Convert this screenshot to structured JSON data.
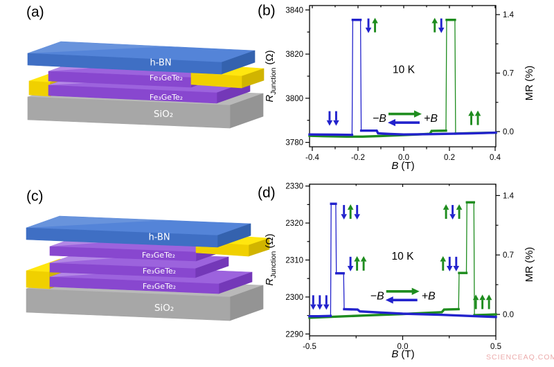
{
  "panels": {
    "a": {
      "label": "(a)",
      "layers": [
        "h-BN",
        "Fe₃GeTe₂",
        "Fe₃GeTe₂",
        "SiO₂"
      ]
    },
    "b": {
      "label": "(b)"
    },
    "c": {
      "label": "(c)",
      "layers": [
        "h-BN",
        "Fe₃GeTe₂",
        "Fe₃GeTe₂",
        "Fe₃GeTe₂",
        "SiO₂"
      ]
    },
    "d": {
      "label": "(d)"
    }
  },
  "watermark": "SCIENCEAQ.COM",
  "colors": {
    "curve_blue": "#2222cc",
    "curve_green": "#1e8c1e",
    "axis": "#000000",
    "hbn_top": "#5484d8",
    "hbn_front": "#3f6fc4",
    "hbn_side": "#3462ae",
    "fgt_top": "#9c63dd",
    "fgt_front": "#8847cf",
    "fgt_side": "#7438b8",
    "au_top": "#ffe60f",
    "au_front": "#f0d000",
    "au_side": "#d1b400",
    "sio2_top": "#b9b9b9",
    "sio2_front": "#a7a7a7",
    "sio2_side": "#949494",
    "layer_label_text": "#ffffff",
    "watermark": "#ecabab"
  },
  "chart_data": [
    {
      "id": "b",
      "type": "line",
      "panel": "(b)",
      "xlabel": {
        "main": "B",
        "unit": "(T)"
      },
      "ylabel_left": {
        "main": "R",
        "sub": "Junction",
        "unit": "(Ω)"
      },
      "ylabel_right": "MR (%)",
      "annotation_temperature": "10 K",
      "temperature_pos": {
        "x": 0,
        "y": 3813
      },
      "xlim": [
        -0.412,
        0.403
      ],
      "ylim": [
        3778,
        3842
      ],
      "x_major": [
        -0.4,
        -0.2,
        0,
        0.2,
        0.4
      ],
      "x_major_labels": [
        "-0.4",
        "-0.2",
        "0.0",
        "0.2",
        "0.4"
      ],
      "x_minor": [
        -0.3,
        -0.1,
        0.1,
        0.3
      ],
      "y_major": [
        3780,
        3800,
        3820,
        3840
      ],
      "y_major_labels": [
        "3780",
        "3800",
        "3820",
        "3840"
      ],
      "y_minor": [
        3790,
        3810,
        3830
      ],
      "mr_base": 3784.9,
      "mr_major": [
        0,
        0.7,
        1.4
      ],
      "mr_major_labels": [
        "0.0",
        "0.7",
        "1.4"
      ],
      "mr_minor": [
        0.35,
        1.05
      ],
      "sweep_legend": {
        "x": 0.003,
        "y": 3791,
        "neg": "−B",
        "pos": "+B"
      },
      "series": [
        {
          "name": "sweep-neg-to-pos",
          "color": "green",
          "points": [
            [
              -0.412,
              3783.0
            ],
            [
              -0.35,
              3782.8
            ],
            [
              -0.25,
              3782.6
            ],
            [
              -0.18,
              3782.6
            ],
            [
              -0.1,
              3782.9
            ],
            [
              0,
              3783.3
            ],
            [
              0.06,
              3783.6
            ],
            [
              0.115,
              3783.9
            ],
            [
              0.122,
              3785.2
            ],
            [
              0.185,
              3785.3
            ],
            [
              0.188,
              3835.5
            ],
            [
              0.224,
              3835.5
            ],
            [
              0.227,
              3784.0
            ],
            [
              0.3,
              3784.2
            ],
            [
              0.403,
              3784.4
            ]
          ]
        },
        {
          "name": "sweep-pos-to-neg",
          "color": "blue",
          "points": [
            [
              0.403,
              3784.4
            ],
            [
              0.3,
              3784.1
            ],
            [
              0.2,
              3783.9
            ],
            [
              0.1,
              3783.7
            ],
            [
              0,
              3783.6
            ],
            [
              -0.06,
              3783.8
            ],
            [
              -0.112,
              3784.1
            ],
            [
              -0.118,
              3785.3
            ],
            [
              -0.186,
              3785.3
            ],
            [
              -0.189,
              3835.5
            ],
            [
              -0.223,
              3835.5
            ],
            [
              -0.226,
              3783.4
            ],
            [
              -0.3,
              3783.5
            ],
            [
              -0.412,
              3783.6
            ]
          ]
        }
      ],
      "spin_annotations": [
        {
          "x": -0.14,
          "y": 3833,
          "arrows": [
            [
              "down",
              "blue"
            ],
            [
              "up",
              "green"
            ]
          ]
        },
        {
          "x": 0.15,
          "y": 3833,
          "arrows": [
            [
              "up",
              "green"
            ],
            [
              "down",
              "blue"
            ]
          ]
        },
        {
          "x": -0.31,
          "y": 3791,
          "arrows": [
            [
              "down",
              "blue"
            ],
            [
              "down",
              "blue"
            ]
          ]
        },
        {
          "x": 0.31,
          "y": 3791,
          "arrows": [
            [
              "up",
              "green"
            ],
            [
              "up",
              "green"
            ]
          ]
        }
      ]
    },
    {
      "id": "d",
      "type": "line",
      "panel": "(d)",
      "xlabel": {
        "main": "B",
        "unit": "(T)"
      },
      "ylabel_left": {
        "main": "R",
        "sub": "Junction",
        "unit": "(Ω)"
      },
      "ylabel_right": "MR (%)",
      "annotation_temperature": "10 K",
      "temperature_pos": {
        "x": 0,
        "y": 2311
      },
      "xlim": [
        -0.5,
        0.5
      ],
      "ylim": [
        2289.5,
        2330.5
      ],
      "x_major": [
        -0.5,
        0,
        0.5
      ],
      "x_major_labels": [
        "-0.5",
        "0.0",
        "0.5"
      ],
      "x_minor": [
        -0.25,
        0.25
      ],
      "y_major": [
        2290,
        2300,
        2310,
        2320,
        2330
      ],
      "y_major_labels": [
        "2290",
        "2300",
        "2310",
        "2320",
        "2330"
      ],
      "y_minor": [
        2295,
        2305,
        2315,
        2325
      ],
      "mr_base": 2295.3,
      "mr_major": [
        0,
        0.7,
        1.4
      ],
      "mr_major_labels": [
        "0.0",
        "0.7",
        "1.4"
      ],
      "mr_minor": [
        0.35,
        1.05
      ],
      "sweep_legend": {
        "x": -0.003,
        "y": 2300.4,
        "neg": "−B",
        "pos": "+B"
      },
      "series": [
        {
          "name": "sweep-neg-to-pos",
          "color": "green",
          "points": [
            [
              -0.5,
              2294.4
            ],
            [
              -0.35,
              2294.7
            ],
            [
              -0.2,
              2295.0
            ],
            [
              0,
              2295.4
            ],
            [
              0.12,
              2295.7
            ],
            [
              0.21,
              2295.9
            ],
            [
              0.222,
              2296.6
            ],
            [
              0.3,
              2296.7
            ],
            [
              0.303,
              2306.5
            ],
            [
              0.342,
              2306.5
            ],
            [
              0.345,
              2325.6
            ],
            [
              0.382,
              2325.6
            ],
            [
              0.385,
              2295.1
            ],
            [
              0.45,
              2295.2
            ],
            [
              0.5,
              2295.3
            ]
          ]
        },
        {
          "name": "sweep-pos-to-neg",
          "color": "blue",
          "points": [
            [
              0.5,
              2294.6
            ],
            [
              0.35,
              2294.9
            ],
            [
              0.2,
              2295.2
            ],
            [
              0,
              2295.5
            ],
            [
              -0.12,
              2295.8
            ],
            [
              -0.23,
              2296.1
            ],
            [
              -0.242,
              2296.6
            ],
            [
              -0.314,
              2296.7
            ],
            [
              -0.317,
              2306.4
            ],
            [
              -0.356,
              2306.4
            ],
            [
              -0.359,
              2325.2
            ],
            [
              -0.384,
              2325.2
            ],
            [
              -0.387,
              2294.9
            ],
            [
              -0.45,
              2294.8
            ],
            [
              -0.5,
              2294.8
            ]
          ]
        }
      ],
      "spin_annotations": [
        {
          "x": -0.28,
          "y": 2323,
          "arrows": [
            [
              "down",
              "blue"
            ],
            [
              "up",
              "green"
            ],
            [
              "down",
              "blue"
            ]
          ]
        },
        {
          "x": -0.245,
          "y": 2309,
          "arrows": [
            [
              "down",
              "blue"
            ],
            [
              "up",
              "green"
            ],
            [
              "up",
              "green"
            ]
          ]
        },
        {
          "x": -0.445,
          "y": 2298.6,
          "arrows": [
            [
              "down",
              "blue"
            ],
            [
              "down",
              "blue"
            ],
            [
              "down",
              "blue"
            ]
          ]
        },
        {
          "x": 0.268,
          "y": 2323,
          "arrows": [
            [
              "up",
              "green"
            ],
            [
              "down",
              "blue"
            ],
            [
              "up",
              "green"
            ]
          ]
        },
        {
          "x": 0.252,
          "y": 2309,
          "arrows": [
            [
              "up",
              "green"
            ],
            [
              "down",
              "blue"
            ],
            [
              "down",
              "blue"
            ]
          ]
        },
        {
          "x": 0.428,
          "y": 2298.6,
          "arrows": [
            [
              "up",
              "green"
            ],
            [
              "up",
              "green"
            ],
            [
              "up",
              "green"
            ]
          ]
        }
      ]
    }
  ]
}
